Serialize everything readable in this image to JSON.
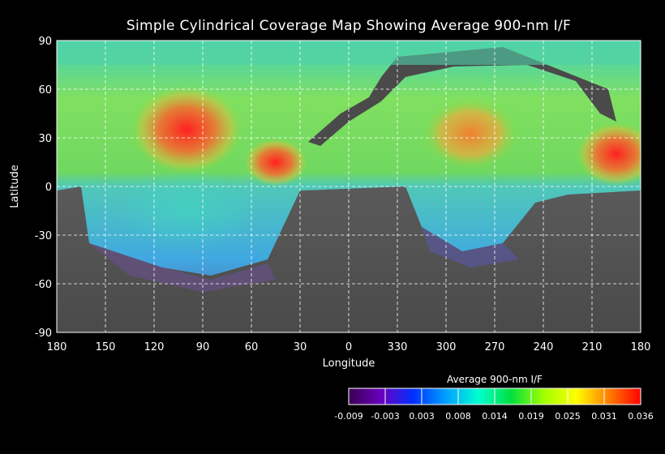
{
  "chart_data": {
    "type": "heatmap",
    "title": "Simple Cylindrical Coverage Map Showing Average 900-nm I/F",
    "xlabel": "Longitude",
    "ylabel": "Latitude",
    "x_ticks": [
      "180",
      "150",
      "120",
      "90",
      "60",
      "30",
      "0",
      "330",
      "300",
      "270",
      "240",
      "210",
      "180"
    ],
    "y_ticks": [
      "90",
      "60",
      "30",
      "0",
      "-30",
      "-60",
      "-90"
    ],
    "ylim": [
      -90,
      90
    ],
    "grid": true,
    "colorbar": {
      "label": "Average 900-nm I/F",
      "ticks": [
        "-0.009",
        "-0.003",
        "0.003",
        "0.008",
        "0.014",
        "0.019",
        "0.025",
        "0.031",
        "0.036"
      ],
      "range": [
        -0.009,
        0.036
      ],
      "colors": [
        "#3a0050",
        "#6a00c0",
        "#0030ff",
        "#00a0ff",
        "#00ffd0",
        "#00e040",
        "#a0ff00",
        "#ffff00",
        "#ff8000",
        "#ff0000"
      ]
    },
    "regions": [
      {
        "name": "north-polar-band",
        "value": 0.01
      },
      {
        "name": "red-high-west",
        "lon": 110,
        "lat": 35,
        "value": 0.034
      },
      {
        "name": "red-high-east",
        "lon": 45,
        "lat": 15,
        "value": 0.035
      },
      {
        "name": "orange-high",
        "lon": 280,
        "lat": 30,
        "value": 0.028
      },
      {
        "name": "red-high-far-east",
        "lon": 195,
        "lat": 15,
        "value": 0.032
      }
    ]
  }
}
